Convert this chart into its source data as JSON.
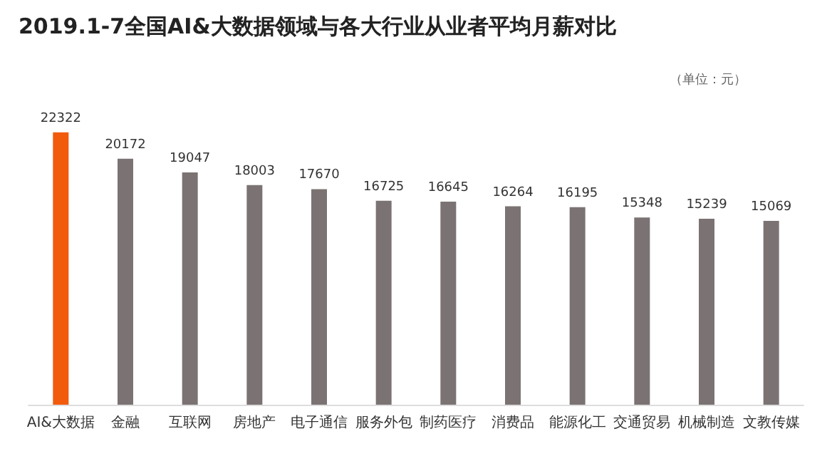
{
  "chart_data": {
    "type": "bar",
    "title": "2019.1-7全国AI&大数据领域与各大行业从业者平均月薪对比",
    "annotations": [
      "（单位：元）"
    ],
    "categories": [
      "AI&大数据",
      "金融",
      "互联网",
      "房地产",
      "电子通信",
      "服务外包",
      "制药医疗",
      "消费品",
      "能源化工",
      "交通贸易",
      "机械制造",
      "文教传媒"
    ],
    "values": [
      22322,
      20172,
      19047,
      18003,
      17670,
      16725,
      16645,
      16264,
      16195,
      15348,
      15239,
      15069
    ],
    "colors": [
      "#f25a0c",
      "#7b7373",
      "#7b7373",
      "#7b7373",
      "#7b7373",
      "#7b7373",
      "#7b7373",
      "#7b7373",
      "#7b7373",
      "#7b7373",
      "#7b7373",
      "#7b7373"
    ],
    "data_labels": true,
    "tick_labels": "x"
  }
}
